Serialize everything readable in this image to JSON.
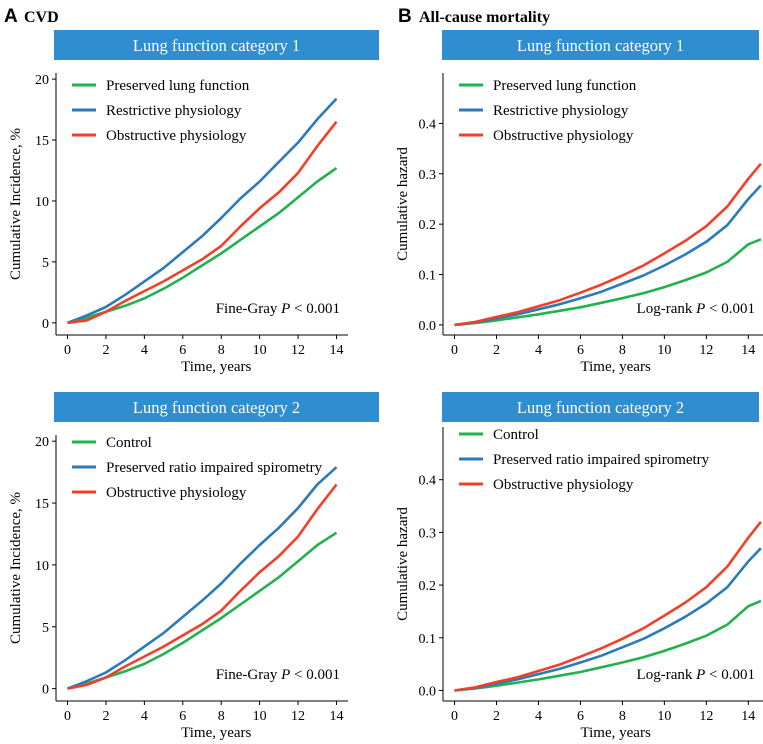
{
  "panels": {
    "A": {
      "letter": "A",
      "title": "CVD"
    },
    "B": {
      "letter": "B",
      "title": "All-cause mortality"
    }
  },
  "colors": {
    "header_bg": "#2e8ed0",
    "green": "#22b14c",
    "blue": "#2b7bba",
    "red": "#f0402a"
  },
  "chart_data": [
    {
      "type": "line",
      "header": "Lung function category 1",
      "xlabel": "Time, years",
      "ylabel": "Cumulative Incidence, %",
      "xlim": [
        -0.6,
        14.6
      ],
      "ylim": [
        -1,
        20.5
      ],
      "xticks": [
        0,
        2,
        4,
        6,
        8,
        10,
        12,
        14
      ],
      "yticks": [
        0,
        5,
        10,
        15,
        20
      ],
      "ytick_labels": [
        "0",
        "5",
        "10",
        "15",
        "20"
      ],
      "annotation": {
        "prefix": "Fine-Gray ",
        "p": "P",
        "suffix": " < 0.001"
      },
      "legend_position": "top-left",
      "x": [
        0,
        1,
        2,
        3,
        4,
        5,
        6,
        7,
        8,
        9,
        10,
        11,
        12,
        13,
        14
      ],
      "series": [
        {
          "name": "Preserved lung function",
          "color": "green",
          "values": [
            0,
            0.4,
            0.9,
            1.4,
            2.0,
            2.8,
            3.7,
            4.7,
            5.7,
            6.8,
            7.9,
            9.0,
            10.3,
            11.6,
            12.7
          ]
        },
        {
          "name": "Restrictive physiology",
          "color": "blue",
          "values": [
            0,
            0.6,
            1.3,
            2.3,
            3.4,
            4.5,
            5.8,
            7.1,
            8.6,
            10.2,
            11.6,
            13.2,
            14.8,
            16.7,
            18.4
          ]
        },
        {
          "name": "Obstructive physiology",
          "color": "red",
          "values": [
            0,
            0.2,
            0.9,
            1.8,
            2.6,
            3.4,
            4.3,
            5.2,
            6.3,
            7.9,
            9.4,
            10.7,
            12.3,
            14.5,
            16.5
          ]
        }
      ]
    },
    {
      "type": "line",
      "header": "Lung function category 1",
      "xlabel": "Time, years",
      "ylabel": "Cumulative hazard",
      "xlim": [
        -0.55,
        14.7
      ],
      "ylim": [
        -0.02,
        0.5
      ],
      "xticks": [
        0,
        2,
        4,
        6,
        8,
        10,
        12,
        14
      ],
      "yticks": [
        0,
        0.1,
        0.2,
        0.3,
        0.4
      ],
      "ytick_labels": [
        "0.0",
        "0.1",
        "0.2",
        "0.3",
        "0.4"
      ],
      "annotation": {
        "prefix": "Log-rank ",
        "p": "P",
        "suffix": " < 0.001"
      },
      "legend_position": "top-left",
      "x": [
        0,
        1,
        2,
        3,
        4,
        5,
        6,
        7,
        8,
        9,
        10,
        11,
        12,
        13,
        14,
        14.6
      ],
      "series": [
        {
          "name": "Preserved lung function",
          "color": "green",
          "values": [
            0,
            0.004,
            0.009,
            0.015,
            0.021,
            0.028,
            0.035,
            0.044,
            0.053,
            0.063,
            0.075,
            0.089,
            0.104,
            0.125,
            0.16,
            0.17
          ]
        },
        {
          "name": "Restrictive physiology",
          "color": "blue",
          "values": [
            0,
            0.005,
            0.013,
            0.021,
            0.031,
            0.041,
            0.053,
            0.066,
            0.082,
            0.098,
            0.118,
            0.14,
            0.165,
            0.198,
            0.25,
            0.277
          ]
        },
        {
          "name": "Obstructive physiology",
          "color": "red",
          "values": [
            0,
            0.006,
            0.016,
            0.025,
            0.037,
            0.049,
            0.064,
            0.08,
            0.098,
            0.118,
            0.142,
            0.167,
            0.196,
            0.235,
            0.29,
            0.32
          ]
        }
      ]
    },
    {
      "type": "line",
      "header": "Lung function category 2",
      "xlabel": "Time, years",
      "ylabel": "Cumulative Incidence, %",
      "xlim": [
        -0.6,
        14.6
      ],
      "ylim": [
        -1,
        20.5
      ],
      "xticks": [
        0,
        2,
        4,
        6,
        8,
        10,
        12,
        14
      ],
      "yticks": [
        0,
        5,
        10,
        15,
        20
      ],
      "ytick_labels": [
        "0",
        "5",
        "10",
        "15",
        "20"
      ],
      "annotation": {
        "prefix": "Fine-Gray ",
        "p": "P",
        "suffix": " < 0.001"
      },
      "legend_position": "top-left",
      "x": [
        0,
        1,
        2,
        3,
        4,
        5,
        6,
        7,
        8,
        9,
        10,
        11,
        12,
        13,
        14
      ],
      "series": [
        {
          "name": "Control",
          "color": "green",
          "values": [
            0,
            0.4,
            0.9,
            1.4,
            2.0,
            2.8,
            3.7,
            4.7,
            5.7,
            6.8,
            7.9,
            9.0,
            10.3,
            11.6,
            12.6
          ]
        },
        {
          "name": "Preserved ratio impaired spirometry",
          "color": "blue",
          "values": [
            0,
            0.6,
            1.3,
            2.3,
            3.4,
            4.5,
            5.8,
            7.1,
            8.5,
            10.1,
            11.6,
            13.0,
            14.6,
            16.5,
            17.9
          ]
        },
        {
          "name": "Obstructive physiology",
          "color": "red",
          "values": [
            0,
            0.3,
            0.9,
            1.8,
            2.6,
            3.4,
            4.3,
            5.2,
            6.3,
            7.9,
            9.4,
            10.7,
            12.3,
            14.5,
            16.5
          ]
        }
      ]
    },
    {
      "type": "line",
      "header": "Lung function category 2",
      "xlabel": "Time, years",
      "ylabel": "Cumulative hazard",
      "xlim": [
        -0.55,
        14.7
      ],
      "ylim": [
        -0.02,
        0.5
      ],
      "xticks": [
        0,
        2,
        4,
        6,
        8,
        10,
        12,
        14
      ],
      "yticks": [
        0,
        0.1,
        0.2,
        0.3,
        0.4
      ],
      "ytick_labels": [
        "0.0",
        "0.1",
        "0.2",
        "0.3",
        "0.4"
      ],
      "annotation": {
        "prefix": "Log-rank ",
        "p": "P",
        "suffix": " < 0.001"
      },
      "legend_position": "top-left",
      "x": [
        0,
        1,
        2,
        3,
        4,
        5,
        6,
        7,
        8,
        9,
        10,
        11,
        12,
        13,
        14,
        14.6
      ],
      "series": [
        {
          "name": "Control",
          "color": "green",
          "values": [
            0,
            0.004,
            0.009,
            0.015,
            0.021,
            0.028,
            0.035,
            0.044,
            0.053,
            0.063,
            0.075,
            0.089,
            0.104,
            0.125,
            0.16,
            0.17
          ]
        },
        {
          "name": "Preserved ratio impaired spirometry",
          "color": "blue",
          "values": [
            0,
            0.005,
            0.013,
            0.021,
            0.031,
            0.041,
            0.053,
            0.066,
            0.082,
            0.098,
            0.118,
            0.14,
            0.165,
            0.196,
            0.245,
            0.27
          ]
        },
        {
          "name": "Obstructive physiology",
          "color": "red",
          "values": [
            0,
            0.006,
            0.016,
            0.025,
            0.037,
            0.049,
            0.064,
            0.08,
            0.098,
            0.118,
            0.142,
            0.167,
            0.196,
            0.235,
            0.29,
            0.32
          ]
        }
      ]
    }
  ]
}
